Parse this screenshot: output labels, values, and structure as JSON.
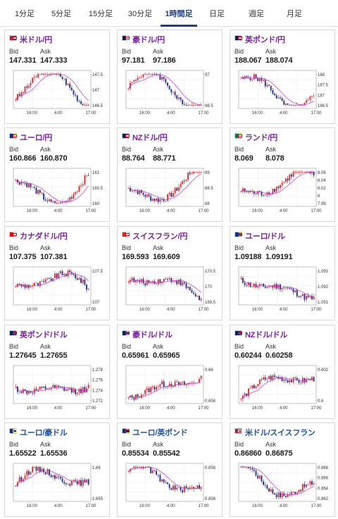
{
  "tabs": [
    {
      "label": "1分足",
      "active": false
    },
    {
      "label": "5分足",
      "active": false
    },
    {
      "label": "15分足",
      "active": false
    },
    {
      "label": "30分足",
      "active": false
    },
    {
      "label": "1時間足",
      "active": true
    },
    {
      "label": "日足",
      "active": false
    },
    {
      "label": "週足",
      "active": false
    },
    {
      "label": "月足",
      "active": false
    }
  ],
  "labels": {
    "bid": "Bid",
    "ask": "Ask"
  },
  "colors": {
    "up": "#e8262c",
    "down": "#1c2f8c",
    "ma": "#c62bd4",
    "accent": "#1c3f8f",
    "pair_text": "#7a1fa2"
  },
  "cards": [
    {
      "name": "米ドル/円",
      "flag": "us-jp",
      "bid": "147.331",
      "ask": "147.333",
      "y_ticks": [
        "147.5",
        "147",
        "146.5"
      ],
      "x_ticks": [
        "16:00",
        "4:00",
        "17:00"
      ]
    },
    {
      "name": "豪ドル/円",
      "flag": "au-jp",
      "bid": "97.181",
      "ask": "97.186",
      "y_ticks": [
        "97",
        "96.5"
      ],
      "x_ticks": [
        "16:00",
        "4:00",
        "17:00"
      ]
    },
    {
      "name": "英ポンド/円",
      "flag": "gb-jp",
      "bid": "188.067",
      "ask": "188.074",
      "y_ticks": [
        "188",
        "187.5",
        "187",
        "186.5"
      ],
      "x_ticks": [
        "16:00",
        "4:00",
        "17:00"
      ]
    },
    {
      "name": "ユーロ/円",
      "flag": "eu-jp",
      "bid": "160.866",
      "ask": "160.870",
      "y_ticks": [
        "161",
        "160.5",
        "160"
      ],
      "x_ticks": [
        "16:00",
        "4:00",
        "17:00"
      ]
    },
    {
      "name": "NZドル/円",
      "flag": "nz-jp",
      "bid": "88.764",
      "ask": "88.771",
      "y_ticks": [
        "89",
        "88.5",
        "88"
      ],
      "x_ticks": [
        "16:00",
        "4:00",
        "17:00"
      ]
    },
    {
      "name": "ランド/円",
      "flag": "za-jp",
      "bid": "8.069",
      "ask": "8.078",
      "y_ticks": [
        "8.06",
        "8.04",
        "8.02",
        "8",
        "7.98"
      ],
      "x_ticks": [
        "16:00",
        "4:00",
        "17:00"
      ]
    },
    {
      "name": "カナダドル/円",
      "flag": "ca-jp",
      "bid": "107.375",
      "ask": "107.381",
      "y_ticks": [
        "107.5",
        "107"
      ],
      "x_ticks": [
        "16:00",
        "4:00",
        "17:00"
      ]
    },
    {
      "name": "スイスフラン/円",
      "flag": "ch-jp",
      "bid": "169.593",
      "ask": "169.609",
      "y_ticks": [
        "170.5",
        "170",
        "169.5"
      ],
      "x_ticks": [
        "16:00",
        "4:00",
        "17:00"
      ]
    },
    {
      "name": "ユーロ/ドル",
      "flag": "eu-us",
      "bid": "1.09188",
      "ask": "1.09191",
      "y_ticks": [
        "1.093",
        "1.092",
        "1.091"
      ],
      "x_ticks": [
        "16:00",
        "4:00",
        "17:00"
      ]
    },
    {
      "name": "英ポンド/ドル",
      "flag": "gb-us",
      "bid": "1.27645",
      "ask": "1.27655",
      "y_ticks": [
        "1.278",
        "1.276",
        "1.274",
        "1.272"
      ],
      "x_ticks": [
        "16:00",
        "4:00",
        "17:00"
      ]
    },
    {
      "name": "豪ドル/ドル",
      "flag": "au-us",
      "bid": "0.65961",
      "ask": "0.65965",
      "y_ticks": [
        "0.66",
        "0.658"
      ],
      "x_ticks": [
        "16:00",
        "4:00",
        "17:00"
      ]
    },
    {
      "name": "NZドル/ドル",
      "flag": "nz-us",
      "bid": "0.60244",
      "ask": "0.60258",
      "y_ticks": [
        "0.602",
        "0.6"
      ],
      "x_ticks": [
        "16:00",
        "4:00",
        "17:00"
      ]
    },
    {
      "name": "ユーロ/豪ドル",
      "flag": "eu-au",
      "bid": "1.65522",
      "ask": "1.65536",
      "y_ticks": [
        "1.66",
        "1.655"
      ],
      "x_ticks": [
        "16:00",
        "4:00",
        "17:00"
      ]
    },
    {
      "name": "ユーロ/英ポンド",
      "flag": "eu-gb",
      "bid": "0.85534",
      "ask": "0.85542",
      "y_ticks": [
        "0.858",
        "0.856"
      ],
      "x_ticks": [
        "16:00",
        "4:00",
        "17:00"
      ]
    },
    {
      "name": "米ドル/スイスフラン",
      "flag": "us-ch",
      "bid": "0.86860",
      "ask": "0.86875",
      "y_ticks": [
        "0.868",
        "0.866",
        "0.864",
        "0.862"
      ],
      "x_ticks": [
        "16:00",
        "4:00",
        "17:00"
      ]
    }
  ]
}
